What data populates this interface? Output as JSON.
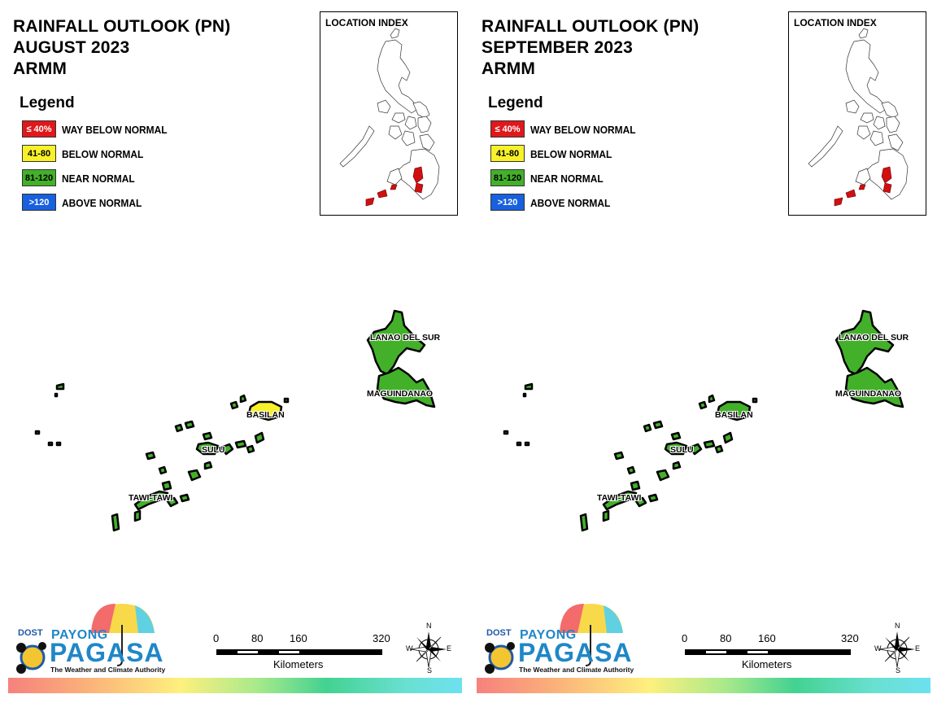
{
  "panels": [
    {
      "title_line1": "RAINFALL OUTLOOK (PN)",
      "title_line2": "AUGUST 2023",
      "title_line3": "ARMM",
      "basilan_color": "#f7f12a"
    },
    {
      "title_line1": "RAINFALL OUTLOOK (PN)",
      "title_line2": "SEPTEMBER 2023",
      "title_line3": "ARMM",
      "basilan_color": "#43b02a"
    }
  ],
  "legend": {
    "title": "Legend",
    "items": [
      {
        "code": "≤ 40%",
        "label": "WAY BELOW NORMAL",
        "color": "#e0181b",
        "text_color": "#ffffff"
      },
      {
        "code": "41-80",
        "label": "BELOW NORMAL",
        "color": "#f7f12a",
        "text_color": "#000000"
      },
      {
        "code": "81-120",
        "label": "NEAR NORMAL",
        "color": "#43b02a",
        "text_color": "#000000"
      },
      {
        "code": ">120",
        "label": "ABOVE NORMAL",
        "color": "#1760de",
        "text_color": "#ffffff"
      }
    ]
  },
  "location_index": {
    "title": "LOCATION INDEX",
    "highlight_color": "#d01010"
  },
  "provinces": {
    "lanao_del_sur": "LANAO DEL SUR",
    "maguindanao": "MAGUINDANAO",
    "basilan": "BASILAN",
    "sulu": "SULU",
    "tawi_tawi": "TAWI-TAWI"
  },
  "province_color": "#43b02a",
  "logo": {
    "dost": "DOST",
    "payong": "PAYONG",
    "pagasa": "PAGASA",
    "tagline": "The Weather and Climate Authority"
  },
  "scale": {
    "ticks": [
      "0",
      "80",
      "160",
      "320"
    ],
    "unit": "Kilometers"
  },
  "compass": {
    "n": "N",
    "s": "S",
    "e": "E",
    "w": "W"
  }
}
